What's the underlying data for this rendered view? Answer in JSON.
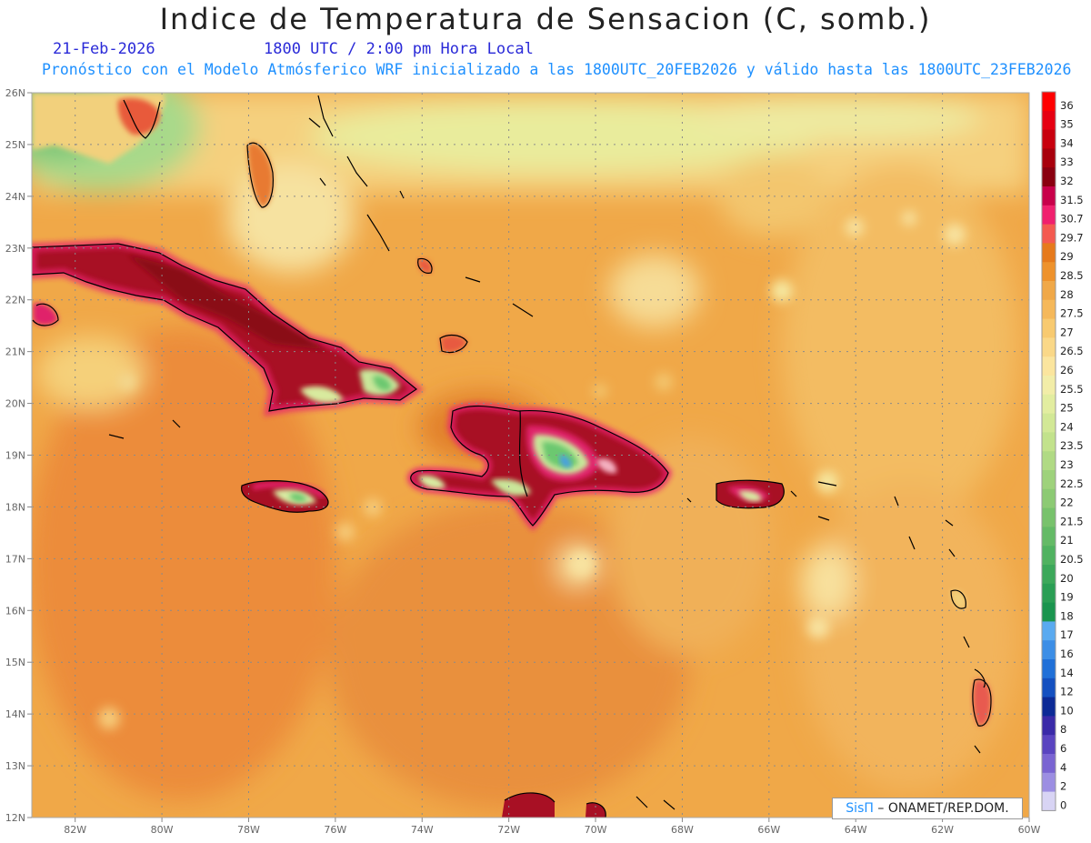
{
  "header": {
    "title": "Indice de Temperatura de Sensacion (C, somb.)",
    "date": "21-Feb-2026",
    "time": "1800 UTC / 2:00 pm Hora Local",
    "forecast": "Pronóstico con el Modelo Atmósferico WRF inicializado a las 1800UTC_20FEB2026 y válido hasta las  1800UTC_23FEB2026"
  },
  "map": {
    "lon_range": [
      -83,
      -60
    ],
    "lat_range": [
      12,
      26
    ],
    "lat_labels": [
      "26N",
      "25N",
      "24N",
      "23N",
      "22N",
      "21N",
      "20N",
      "19N",
      "18N",
      "17N",
      "16N",
      "15N",
      "14N",
      "13N",
      "12N"
    ],
    "lon_labels": [
      "82W",
      "80W",
      "78W",
      "76W",
      "74W",
      "72W",
      "70W",
      "68W",
      "66W",
      "64W",
      "62W",
      "60W"
    ],
    "colors": {
      "sea_base": "#f0a848",
      "sea_warm": "#e8923a",
      "sea_cool": "#f5c56a",
      "land_hot": "#a81024",
      "land_hotter": "#8a0818",
      "land_magenta": "#e0206a",
      "land_cool": "#c9e69a",
      "land_green": "#6cc870",
      "coast": "#000000",
      "grid": "#9a9a9a"
    }
  },
  "legend": {
    "labels": [
      "36",
      "35",
      "34",
      "33",
      "32",
      "31.5",
      "30.7",
      "29.7",
      "29",
      "28.5",
      "28",
      "27.5",
      "27",
      "26.5",
      "26",
      "25.5",
      "25",
      "24",
      "23.5",
      "23",
      "22.5",
      "22",
      "21.5",
      "21",
      "20.5",
      "20",
      "19",
      "18",
      "17",
      "16",
      "14",
      "12",
      "10",
      "8",
      "6",
      "4",
      "2",
      "0"
    ],
    "colors": [
      "#ff0000",
      "#e60012",
      "#c8000e",
      "#a8000c",
      "#8a0010",
      "#c8004a",
      "#f0206e",
      "#f45a50",
      "#e67a1c",
      "#ee922c",
      "#f0a848",
      "#f5b85a",
      "#f8ca70",
      "#fad888",
      "#fbe59e",
      "#f2eda8",
      "#e2eda0",
      "#d2e896",
      "#c2e28c",
      "#b0da84",
      "#9ed27c",
      "#8cca74",
      "#78c26c",
      "#64ba66",
      "#50b260",
      "#3ca85a",
      "#2a9e54",
      "#1a944e",
      "#5aaaf0",
      "#3c8ee6",
      "#2070d8",
      "#1450c0",
      "#0c2a96",
      "#3a2aa8",
      "#5a44c0",
      "#7a64d2",
      "#9c8ee2",
      "#d8d4f4"
    ]
  },
  "credit": {
    "brand": "SisΠ",
    "org": "ONAMET/REP.DOM."
  }
}
